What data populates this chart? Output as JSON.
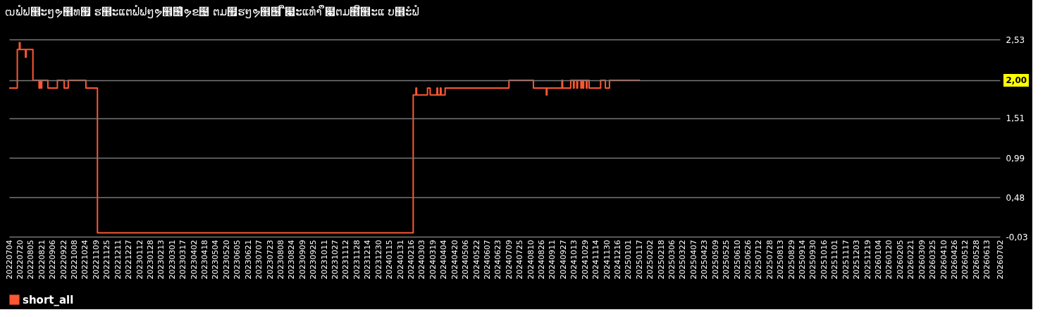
{
  "chart_data": {
    "type": "step",
    "title": "ຒຟໍຟ຾ະໆຯ຾ທ຿ ຮ຾ະແຕຟໍຟໆຯ຾຦ໍຯຂ຤ ຕມ຿ຮໆຯ຾຦ ື໇ະແທຳ ຶ໇ຕມ຾ີ຾ະແ ບ຾ະໍຟໍ",
    "series": [
      {
        "name": "short_all",
        "color": "#ff5733",
        "x": [
          "2022-07-04",
          "2022-07-14",
          "2022-07-16",
          "2022-07-18",
          "2022-07-19",
          "2022-07-20",
          "2022-07-27",
          "2022-07-28",
          "2022-07-29",
          "2022-08-06",
          "2022-08-08",
          "2022-08-16",
          "2022-08-17",
          "2022-08-18",
          "2022-08-19",
          "2022-08-20",
          "2022-08-21",
          "2022-08-29",
          "2022-08-30",
          "2022-09-11",
          "2022-09-13",
          "2022-09-22",
          "2022-09-23",
          "2022-09-27",
          "2022-09-29",
          "2022-10-24",
          "2022-10-25",
          "2022-11-09",
          "2022-11-11",
          "2024-02-18",
          "2024-02-19",
          "2024-02-22",
          "2024-02-23",
          "2024-02-24",
          "2024-03-10",
          "2024-03-11",
          "2024-03-14",
          "2024-03-15",
          "2024-03-24",
          "2024-03-25",
          "2024-03-26",
          "2024-03-30",
          "2024-03-31",
          "2024-04-05",
          "2024-04-06",
          "2024-07-08",
          "2024-07-09",
          "2024-08-13",
          "2024-08-14",
          "2024-09-01",
          "2024-09-02",
          "2024-09-03",
          "2024-09-24",
          "2024-09-25",
          "2024-09-26",
          "2024-10-07",
          "2024-10-08",
          "2024-10-11",
          "2024-10-12",
          "2024-10-13",
          "2024-10-16",
          "2024-10-17",
          "2024-10-18",
          "2024-10-22",
          "2024-10-23",
          "2024-10-24",
          "2024-10-26",
          "2024-10-27",
          "2024-10-30",
          "2024-10-31",
          "2024-11-01",
          "2024-11-03",
          "2024-11-04",
          "2024-11-20",
          "2024-11-21",
          "2024-11-27",
          "2024-11-28",
          "2024-12-03",
          "2024-12-04",
          "2025-01-18"
        ],
        "values": [
          1.9,
          1.9,
          2.4,
          2.4,
          2.49,
          2.4,
          2.4,
          2.3,
          2.4,
          2.4,
          2.0,
          2.0,
          1.9,
          2.0,
          2.0,
          1.9,
          2.0,
          2.0,
          1.9,
          1.9,
          2.0,
          2.0,
          1.9,
          1.9,
          2.0,
          2.0,
          1.9,
          1.9,
          0.02,
          0.02,
          1.81,
          1.81,
          1.9,
          1.81,
          1.81,
          1.9,
          1.9,
          1.81,
          1.81,
          1.9,
          1.81,
          1.9,
          1.81,
          1.81,
          1.9,
          1.9,
          2.0,
          2.0,
          1.9,
          1.9,
          1.81,
          1.9,
          1.9,
          2.0,
          1.9,
          1.9,
          2.0,
          2.0,
          1.9,
          2.0,
          2.0,
          1.9,
          2.0,
          2.0,
          1.9,
          2.0,
          1.9,
          2.0,
          2.0,
          1.9,
          2.0,
          2.0,
          1.9,
          1.9,
          2.0,
          2.0,
          1.9,
          1.9,
          2.0,
          2.0
        ]
      }
    ],
    "xlim": [
      "2022-07-04",
      "2026-07-02"
    ],
    "xticks": [
      {
        "value": "2022-07-04",
        "label": "20220704"
      },
      {
        "value": "2022-07-20",
        "label": "20220720"
      },
      {
        "value": "2022-08-05",
        "label": "20220805"
      },
      {
        "value": "2022-08-21",
        "label": "20220821"
      },
      {
        "value": "2022-09-06",
        "label": "20220906"
      },
      {
        "value": "2022-09-22",
        "label": "20220922"
      },
      {
        "value": "2022-10-08",
        "label": "20221008"
      },
      {
        "value": "2022-10-24",
        "label": "20221024"
      },
      {
        "value": "2022-11-09",
        "label": "20221109"
      },
      {
        "value": "2022-11-25",
        "label": "20221125"
      },
      {
        "value": "2022-12-11",
        "label": "20221211"
      },
      {
        "value": "2022-12-27",
        "label": "20221227"
      },
      {
        "value": "2023-01-12",
        "label": "20230112"
      },
      {
        "value": "2023-01-28",
        "label": "20230128"
      },
      {
        "value": "2023-02-13",
        "label": "20230213"
      },
      {
        "value": "2023-03-01",
        "label": "20230301"
      },
      {
        "value": "2023-03-17",
        "label": "20230317"
      },
      {
        "value": "2023-04-02",
        "label": "20230402"
      },
      {
        "value": "2023-04-18",
        "label": "20230418"
      },
      {
        "value": "2023-05-04",
        "label": "20230504"
      },
      {
        "value": "2023-05-20",
        "label": "20230520"
      },
      {
        "value": "2023-06-05",
        "label": "20230605"
      },
      {
        "value": "2023-06-21",
        "label": "20230621"
      },
      {
        "value": "2023-07-07",
        "label": "20230707"
      },
      {
        "value": "2023-07-23",
        "label": "20230723"
      },
      {
        "value": "2023-08-08",
        "label": "20230808"
      },
      {
        "value": "2023-08-24",
        "label": "20230824"
      },
      {
        "value": "2023-09-09",
        "label": "20230909"
      },
      {
        "value": "2023-09-25",
        "label": "20230925"
      },
      {
        "value": "2023-10-11",
        "label": "20231011"
      },
      {
        "value": "2023-10-27",
        "label": "20231027"
      },
      {
        "value": "2023-11-12",
        "label": "20231112"
      },
      {
        "value": "2023-11-28",
        "label": "20231128"
      },
      {
        "value": "2023-12-14",
        "label": "20231214"
      },
      {
        "value": "2023-12-30",
        "label": "20231230"
      },
      {
        "value": "2024-01-15",
        "label": "20240115"
      },
      {
        "value": "2024-01-31",
        "label": "20240131"
      },
      {
        "value": "2024-02-16",
        "label": "20240216"
      },
      {
        "value": "2024-03-03",
        "label": "20240303"
      },
      {
        "value": "2024-03-19",
        "label": "20240319"
      },
      {
        "value": "2024-04-04",
        "label": "20240404"
      },
      {
        "value": "2024-04-20",
        "label": "20240420"
      },
      {
        "value": "2024-05-06",
        "label": "20240506"
      },
      {
        "value": "2024-05-22",
        "label": "20240522"
      },
      {
        "value": "2024-06-07",
        "label": "20240607"
      },
      {
        "value": "2024-06-23",
        "label": "20240623"
      },
      {
        "value": "2024-07-09",
        "label": "20240709"
      },
      {
        "value": "2024-07-25",
        "label": "20240725"
      },
      {
        "value": "2024-08-10",
        "label": "20240810"
      },
      {
        "value": "2024-08-26",
        "label": "20240826"
      },
      {
        "value": "2024-09-11",
        "label": "20240911"
      },
      {
        "value": "2024-09-27",
        "label": "20240927"
      },
      {
        "value": "2024-10-13",
        "label": "20241013"
      },
      {
        "value": "2024-10-29",
        "label": "20241029"
      },
      {
        "value": "2024-11-14",
        "label": "20241114"
      },
      {
        "value": "2024-11-30",
        "label": "20241130"
      },
      {
        "value": "2024-12-16",
        "label": "20241216"
      },
      {
        "value": "2025-01-01",
        "label": "20250101"
      },
      {
        "value": "2025-01-17",
        "label": "20250117"
      },
      {
        "value": "2025-02-02",
        "label": "20250202"
      },
      {
        "value": "2025-02-18",
        "label": "20250218"
      },
      {
        "value": "2025-03-06",
        "label": "20250306"
      },
      {
        "value": "2025-03-22",
        "label": "20250322"
      },
      {
        "value": "2025-04-07",
        "label": "20250407"
      },
      {
        "value": "2025-04-23",
        "label": "20250423"
      },
      {
        "value": "2025-05-09",
        "label": "20250509"
      },
      {
        "value": "2025-05-25",
        "label": "20250525"
      },
      {
        "value": "2025-06-10",
        "label": "20250610"
      },
      {
        "value": "2025-06-26",
        "label": "20250626"
      },
      {
        "value": "2025-07-12",
        "label": "20250712"
      },
      {
        "value": "2025-07-28",
        "label": "20250728"
      },
      {
        "value": "2025-08-13",
        "label": "20250813"
      },
      {
        "value": "2025-08-29",
        "label": "20250829"
      },
      {
        "value": "2025-09-14",
        "label": "20250914"
      },
      {
        "value": "2025-09-30",
        "label": "20250930"
      },
      {
        "value": "2025-10-16",
        "label": "20251016"
      },
      {
        "value": "2025-11-01",
        "label": "20251101"
      },
      {
        "value": "2025-11-17",
        "label": "20251117"
      },
      {
        "value": "2025-12-03",
        "label": "20251203"
      },
      {
        "value": "2025-12-19",
        "label": "20251219"
      },
      {
        "value": "2026-01-04",
        "label": "20260104"
      },
      {
        "value": "2026-01-20",
        "label": "20260120"
      },
      {
        "value": "2026-02-05",
        "label": "20260205"
      },
      {
        "value": "2026-02-21",
        "label": "20260221"
      },
      {
        "value": "2026-03-09",
        "label": "20260309"
      },
      {
        "value": "2026-03-25",
        "label": "20260325"
      },
      {
        "value": "2026-04-10",
        "label": "20260410"
      },
      {
        "value": "2026-04-26",
        "label": "20260426"
      },
      {
        "value": "2026-05-12",
        "label": "20260512"
      },
      {
        "value": "2026-05-28",
        "label": "20260528"
      },
      {
        "value": "2026-06-13",
        "label": "20260613"
      },
      {
        "value": "2026-07-02",
        "label": "20260702"
      }
    ],
    "ylim": [
      -0.03,
      2.53
    ],
    "yticks": [
      {
        "value": -0.03,
        "label": "-0,03"
      },
      {
        "value": 0.48,
        "label": "0,48"
      },
      {
        "value": 0.99,
        "label": "0,99"
      },
      {
        "value": 1.51,
        "label": "1,51"
      },
      {
        "value": 2.0,
        "label": "2,00"
      },
      {
        "value": 2.53,
        "label": "2,53"
      }
    ],
    "grid": "y",
    "legend": "bottom left"
  }
}
